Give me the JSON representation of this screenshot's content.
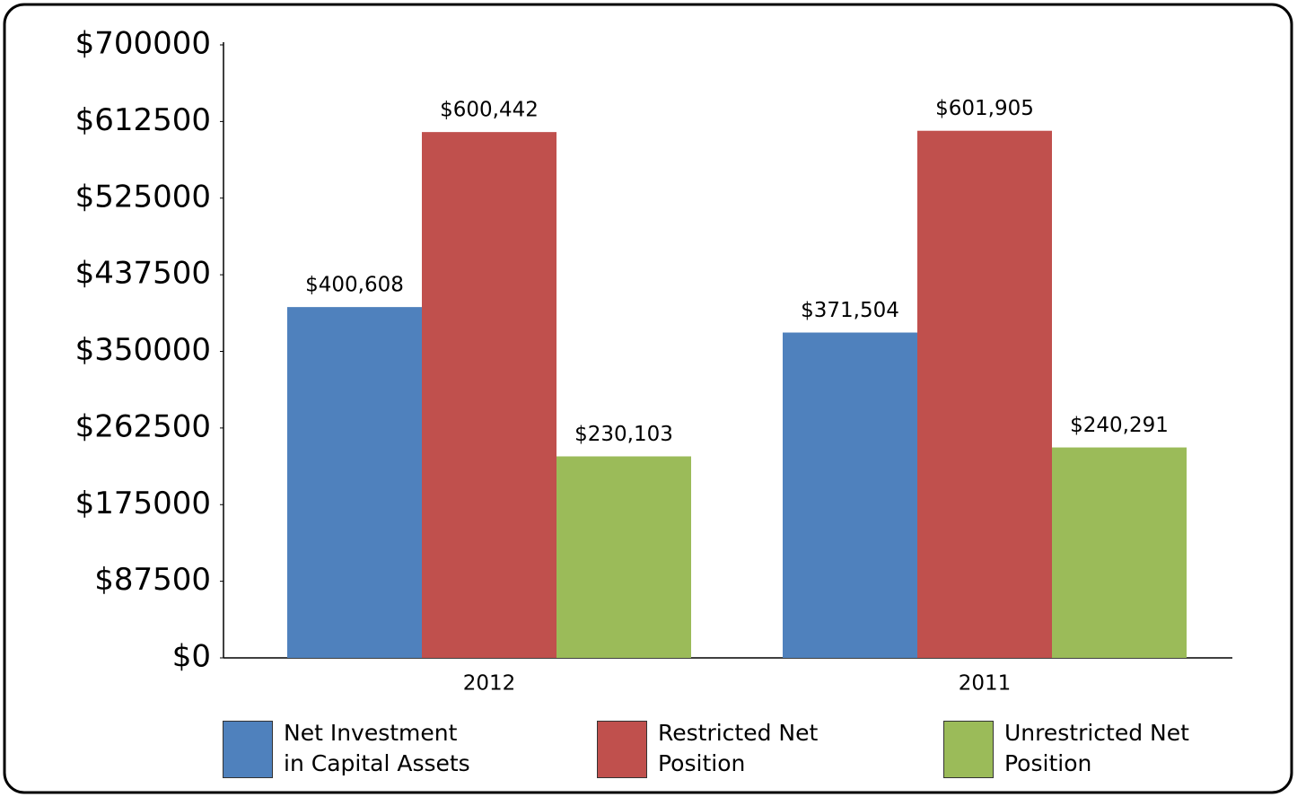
{
  "chart_data": {
    "type": "bar",
    "categories": [
      "2012",
      "2011"
    ],
    "series": [
      {
        "name": "Net Investment in Capital Assets",
        "color": "#4f81bd",
        "values": [
          400608,
          371504
        ],
        "value_labels": [
          "$400,608",
          "$371,504"
        ]
      },
      {
        "name": "Restricted Net Position",
        "color": "#c0504d",
        "values": [
          600442,
          601905
        ],
        "value_labels": [
          "$600,442",
          "$601,905"
        ]
      },
      {
        "name": "Unrestricted Net Position",
        "color": "#9bbb59",
        "values": [
          230103,
          240291
        ],
        "value_labels": [
          "$230,103",
          "$240,291"
        ]
      }
    ],
    "ylim": [
      0,
      700000
    ],
    "yticks": [
      {
        "value": 0,
        "label": "$0"
      },
      {
        "value": 87500,
        "label": "$87500"
      },
      {
        "value": 175000,
        "label": "$175000"
      },
      {
        "value": 262500,
        "label": "$262500"
      },
      {
        "value": 350000,
        "label": "$350000"
      },
      {
        "value": 437500,
        "label": "$437500"
      },
      {
        "value": 525000,
        "label": "$525000"
      },
      {
        "value": 612500,
        "label": "$612500"
      },
      {
        "value": 700000,
        "label": "$700000"
      }
    ],
    "grid": false,
    "legend": "bottom"
  }
}
